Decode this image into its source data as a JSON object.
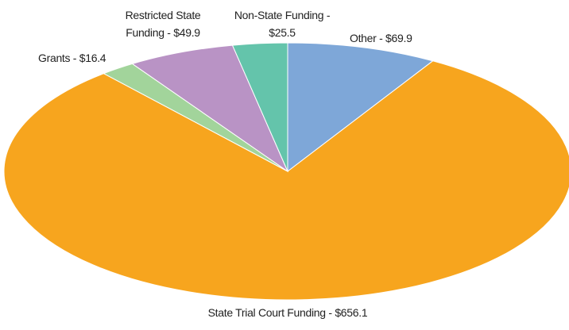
{
  "chart_data": {
    "type": "pie",
    "values": [
      69.9,
      656.1,
      16.4,
      49.9,
      25.5
    ],
    "value_labels": [
      "Other - $69.9",
      "State Trial Court Funding - $656.1",
      "Grants - $16.4",
      "Restricted State Funding - $49.9",
      "Non-State Funding - $25.5"
    ],
    "colors": [
      "#7ea7d8",
      "#f7a51e",
      "#a2d49b",
      "#b993c5",
      "#64c4ab"
    ]
  }
}
